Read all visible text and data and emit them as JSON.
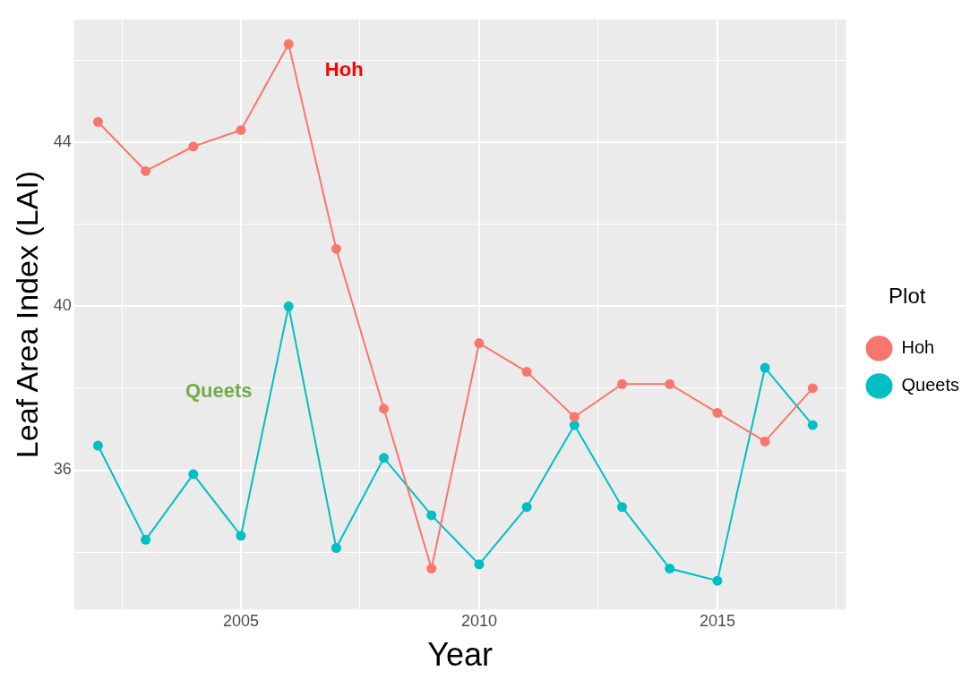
{
  "chart_data": {
    "type": "line",
    "xlabel": "Year",
    "ylabel": "Leaf Area Index (LAI)",
    "legend_title": "Plot",
    "legend": "right",
    "grid": true,
    "marker": "circle",
    "line_style": "solid",
    "x": [
      2002,
      2003,
      2004,
      2005,
      2006,
      2007,
      2008,
      2009,
      2010,
      2011,
      2012,
      2013,
      2014,
      2015,
      2016,
      2017
    ],
    "xlim": [
      2001.5,
      2017.7
    ],
    "xticks": [
      {
        "value": 2002.5,
        "label": null
      },
      2005,
      {
        "value": 2007.5,
        "label": null
      },
      2010,
      {
        "value": 2012.5,
        "label": null
      },
      2015,
      {
        "value": 2017.5,
        "label": null
      }
    ],
    "ylim": [
      32.6,
      47.0
    ],
    "yticks": [
      {
        "value": 34,
        "label": null
      },
      36,
      {
        "value": 38,
        "label": null
      },
      40,
      {
        "value": 42,
        "label": null
      },
      44,
      {
        "value": 46,
        "label": null
      }
    ],
    "series": [
      {
        "name": "Hoh",
        "color": "#f8766d",
        "values": [
          44.5,
          43.3,
          43.9,
          44.3,
          46.4,
          41.4,
          37.5,
          33.6,
          39.1,
          38.4,
          37.3,
          38.1,
          38.1,
          37.4,
          36.7,
          38.0
        ]
      },
      {
        "name": "Queets",
        "color": "#00bfc4",
        "values": [
          36.6,
          34.3,
          35.9,
          34.4,
          40.0,
          34.1,
          36.3,
          34.9,
          33.7,
          35.1,
          37.1,
          35.1,
          33.6,
          33.3,
          38.5,
          37.1
        ]
      }
    ],
    "annotations": [
      "Hoh",
      "Queets"
    ]
  }
}
